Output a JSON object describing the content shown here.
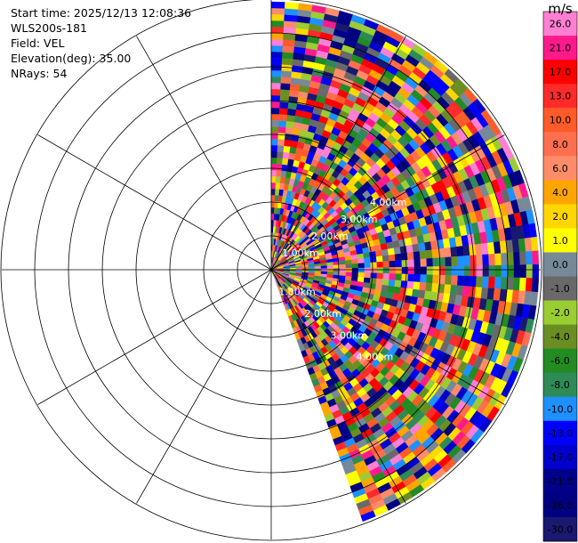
{
  "info": {
    "start_time": "Start time: 2025/12/13 12:08:36",
    "instrument": "WLS200s-181",
    "field": "Field: VEL",
    "elevation": "Elevation(deg): 35.00",
    "nrays": "NRays: 54"
  },
  "chart_data": {
    "type": "heatmap",
    "projection": "polar PPI",
    "field": "VEL",
    "units": "m/s",
    "azimuth_range_deg": [
      0,
      160
    ],
    "n_rays": 54,
    "range_rings": [
      "1.00km",
      "2.00km",
      "3.00km",
      "4.00km"
    ],
    "range_labels_shown": [
      {
        "text": "1.00km",
        "azimuth_deg": 60
      },
      {
        "text": "2.00km",
        "azimuth_deg": 60
      },
      {
        "text": "3.00km",
        "azimuth_deg": 60
      },
      {
        "text": "4.00km",
        "azimuth_deg": 60
      },
      {
        "text": "1.00km",
        "azimuth_deg": 130
      },
      {
        "text": "2.00km",
        "azimuth_deg": 130
      },
      {
        "text": "3.00km",
        "azimuth_deg": 130
      },
      {
        "text": "4.00km",
        "azimuth_deg": 130
      }
    ],
    "colorbar": {
      "unit_label": "m/s",
      "ticks": [
        "26.0",
        "21.0",
        "17.0",
        "13.0",
        "10.0",
        "8.0",
        "6.0",
        "4.0",
        "2.0",
        "1.0",
        "0.0",
        "-1.0",
        "-2.0",
        "-4.0",
        "-6.0",
        "-8.0",
        "-10.0",
        "-13.0",
        "-17.0",
        "-21.0",
        "-26.0",
        "-30.0"
      ],
      "colors": [
        "#ff7fd4",
        "#ff1a8c",
        "#ff0000",
        "#ff2a2a",
        "#ff5a2a",
        "#ff6f4f",
        "#ff8c69",
        "#ffa500",
        "#ffd700",
        "#ffff00",
        "#778899",
        "#696969",
        "#9acd32",
        "#6b8e23",
        "#228b22",
        "#2e8b57",
        "#1e90ff",
        "#0000ff",
        "#0000cd",
        "#00008b",
        "#000080",
        "#191970"
      ]
    }
  }
}
